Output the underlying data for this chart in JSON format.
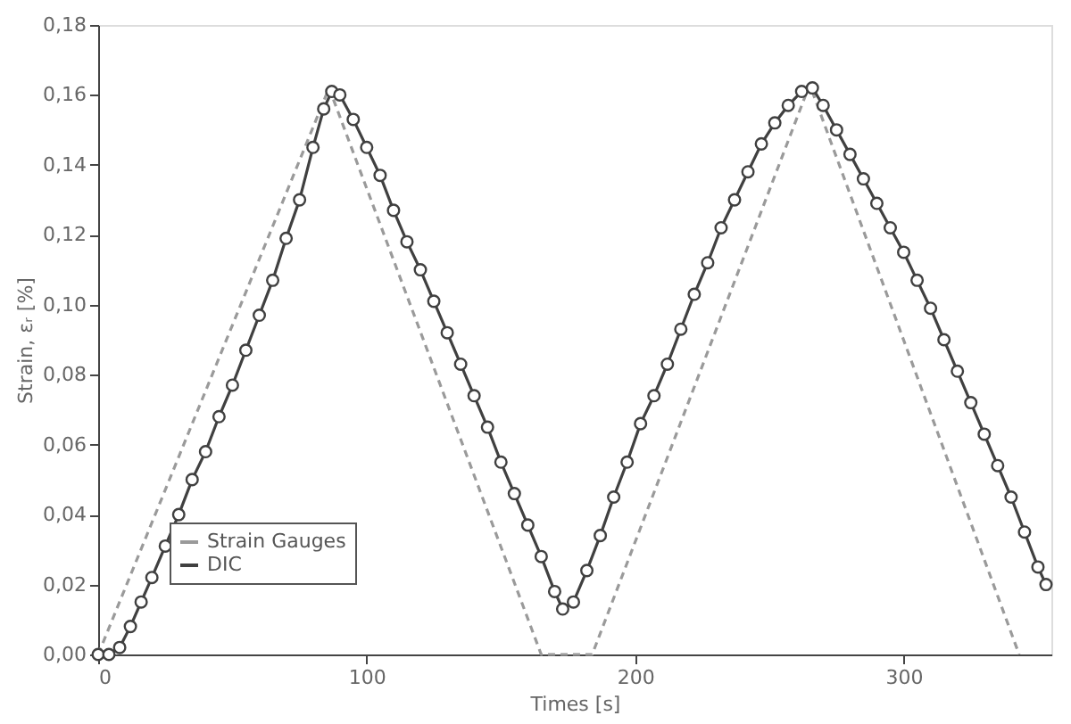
{
  "chart_data": {
    "type": "line",
    "xlabel": "Times [s]",
    "ylabel": "Strain, εᵣ [%]",
    "xlim": [
      0,
      355
    ],
    "xticks": [
      0,
      100,
      200,
      300
    ],
    "ylim": [
      0,
      0.18
    ],
    "yticks": [
      {
        "value": 0,
        "label": "0,00"
      },
      {
        "value": 0.02,
        "label": "0,02"
      },
      {
        "value": 0.04,
        "label": "0,04"
      },
      {
        "value": 0.06,
        "label": "0,06"
      },
      {
        "value": 0.08,
        "label": "0,08"
      },
      {
        "value": 0.1,
        "label": "0,10"
      },
      {
        "value": 0.12,
        "label": "0,12"
      },
      {
        "value": 0.14,
        "label": "0,14"
      },
      {
        "value": 0.16,
        "label": "0,16"
      },
      {
        "value": 0.18,
        "label": "0,18"
      }
    ],
    "grid": false,
    "legend": "bottom left",
    "series": [
      {
        "name": "Strain Gauges",
        "color": "#9a9a9a",
        "line_style": "dashed",
        "marker": "none",
        "x": [
          0,
          86,
          165,
          184,
          265,
          343
        ],
        "values": [
          0,
          0.162,
          0,
          0,
          0.163,
          0
        ]
      },
      {
        "name": "DIC",
        "color": "#404040",
        "line_style": "solid",
        "marker": "circle",
        "x": [
          0,
          4,
          8,
          12,
          16,
          20,
          25,
          30,
          35,
          40,
          45,
          50,
          55,
          60,
          65,
          70,
          75,
          80,
          84,
          87,
          90,
          95,
          100,
          105,
          110,
          115,
          120,
          125,
          130,
          135,
          140,
          145,
          150,
          155,
          160,
          165,
          170,
          173,
          177,
          182,
          187,
          192,
          197,
          202,
          207,
          212,
          217,
          222,
          227,
          232,
          237,
          242,
          247,
          252,
          257,
          262,
          266,
          270,
          275,
          280,
          285,
          290,
          295,
          300,
          305,
          310,
          315,
          320,
          325,
          330,
          335,
          340,
          345,
          350,
          353
        ],
        "values": [
          0,
          0,
          0.002,
          0.008,
          0.015,
          0.022,
          0.031,
          0.04,
          0.05,
          0.058,
          0.068,
          0.077,
          0.087,
          0.097,
          0.107,
          0.119,
          0.13,
          0.145,
          0.156,
          0.161,
          0.16,
          0.153,
          0.145,
          0.137,
          0.127,
          0.118,
          0.11,
          0.101,
          0.092,
          0.083,
          0.074,
          0.065,
          0.055,
          0.046,
          0.037,
          0.028,
          0.018,
          0.013,
          0.015,
          0.024,
          0.034,
          0.045,
          0.055,
          0.066,
          0.074,
          0.083,
          0.093,
          0.103,
          0.112,
          0.122,
          0.13,
          0.138,
          0.146,
          0.152,
          0.157,
          0.161,
          0.162,
          0.157,
          0.15,
          0.143,
          0.136,
          0.129,
          0.122,
          0.115,
          0.107,
          0.099,
          0.09,
          0.081,
          0.072,
          0.063,
          0.054,
          0.045,
          0.035,
          0.025,
          0.02
        ]
      }
    ]
  }
}
